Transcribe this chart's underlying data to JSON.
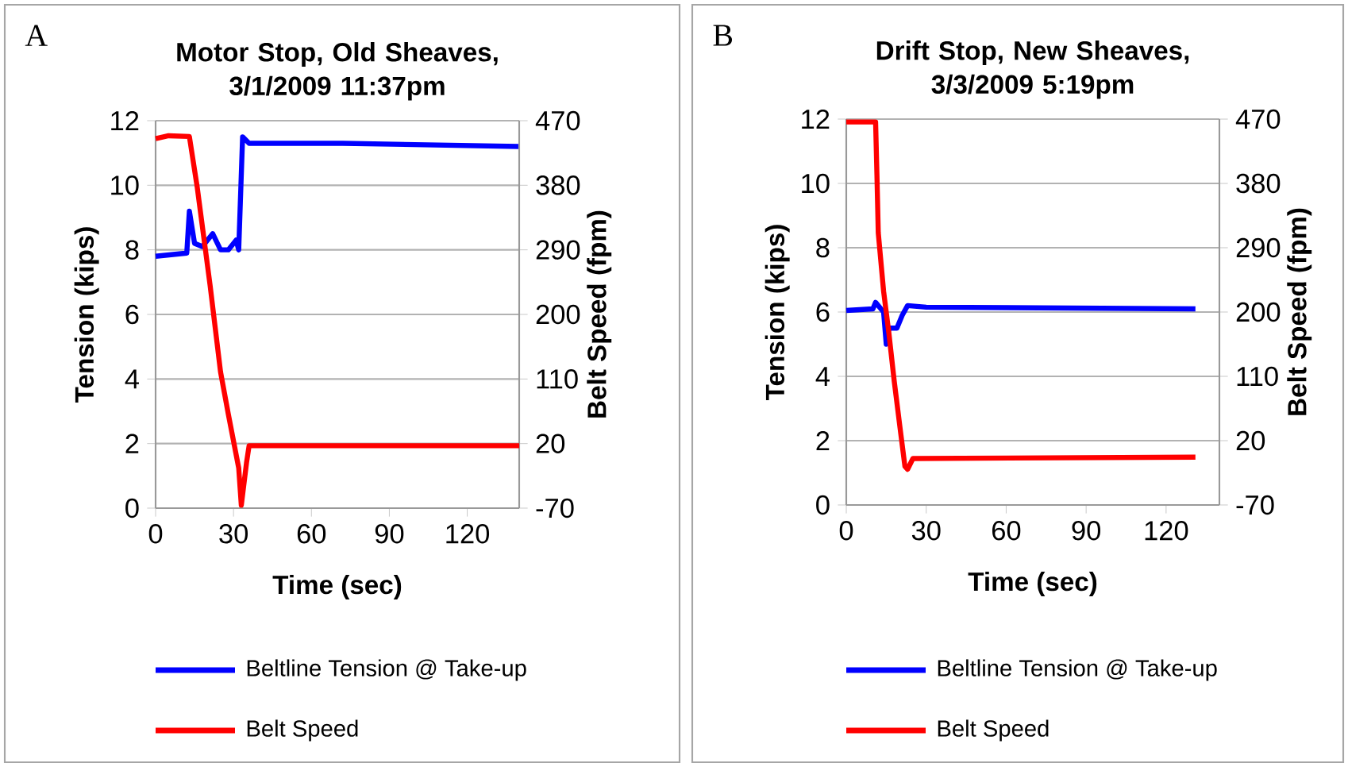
{
  "chart_data": [
    {
      "type": "line",
      "title": "Motor Stop, Old Sheaves, 3/1/2009 11:37pm",
      "xlabel": "Time (sec)",
      "ylabel": "Tension (kips)",
      "y2label": "Belt Speed (fpm)",
      "annotations": [
        "A"
      ],
      "xlim": [
        0,
        140
      ],
      "xticks": [
        0,
        30,
        60,
        90,
        120
      ],
      "ylim": [
        0,
        12
      ],
      "yticks": [
        0,
        2,
        4,
        6,
        8,
        10,
        12
      ],
      "y2lim": [
        -70,
        470
      ],
      "y2ticks": [
        -70,
        20,
        110,
        200,
        290,
        380,
        470
      ],
      "grid": "y",
      "legend": "bottom",
      "series": [
        {
          "name": "Beltline Tension @ Take-up",
          "color": "#0000ff",
          "x": [
            0,
            12,
            13,
            15,
            18,
            22,
            25,
            28,
            31,
            32,
            33.5,
            36,
            45,
            72,
            140
          ],
          "values": [
            7.8,
            7.9,
            9.2,
            8.2,
            8.1,
            8.5,
            8.0,
            8.0,
            8.3,
            8.0,
            11.5,
            11.3,
            11.3,
            11.3,
            11.2
          ]
        },
        {
          "name": "Belt Speed",
          "color": "#ff0000",
          "axis": "y2",
          "x": [
            0,
            5,
            13,
            16,
            21,
            25,
            28,
            32,
            33,
            35,
            36,
            140
          ],
          "values": [
            445,
            449,
            448,
            378,
            240,
            120,
            61,
            -14,
            -66,
            -7,
            17,
            17
          ]
        }
      ]
    },
    {
      "type": "line",
      "title": "Drift Stop, New Sheaves, 3/3/2009 5:19pm",
      "xlabel": "Time (sec)",
      "ylabel": "Tension (kips)",
      "y2label": "Belt Speed (fpm)",
      "annotations": [
        "B"
      ],
      "xlim": [
        0,
        140
      ],
      "xticks": [
        0,
        30,
        60,
        90,
        120
      ],
      "ylim": [
        0,
        12
      ],
      "yticks": [
        0,
        2,
        4,
        6,
        8,
        10,
        12
      ],
      "y2lim": [
        -70,
        470
      ],
      "y2ticks": [
        -70,
        20,
        110,
        200,
        290,
        380,
        470
      ],
      "grid": "y",
      "legend": "bottom",
      "series": [
        {
          "name": "Beltline Tension @ Take-up",
          "color": "#0000ff",
          "x": [
            0,
            10,
            11,
            14,
            15,
            16,
            19,
            21,
            23,
            30,
            131
          ],
          "values": [
            6.05,
            6.1,
            6.3,
            6.0,
            5.0,
            5.5,
            5.5,
            5.9,
            6.2,
            6.15,
            6.1
          ]
        },
        {
          "name": "Belt Speed",
          "color": "#ff0000",
          "axis": "y2",
          "x": [
            0,
            11,
            11.5,
            12,
            14,
            16,
            18,
            20,
            22,
            23,
            25,
            131
          ],
          "values": [
            466,
            466,
            392,
            311,
            229,
            170,
            103,
            43,
            -16,
            -20,
            -5,
            -3
          ]
        }
      ]
    }
  ]
}
